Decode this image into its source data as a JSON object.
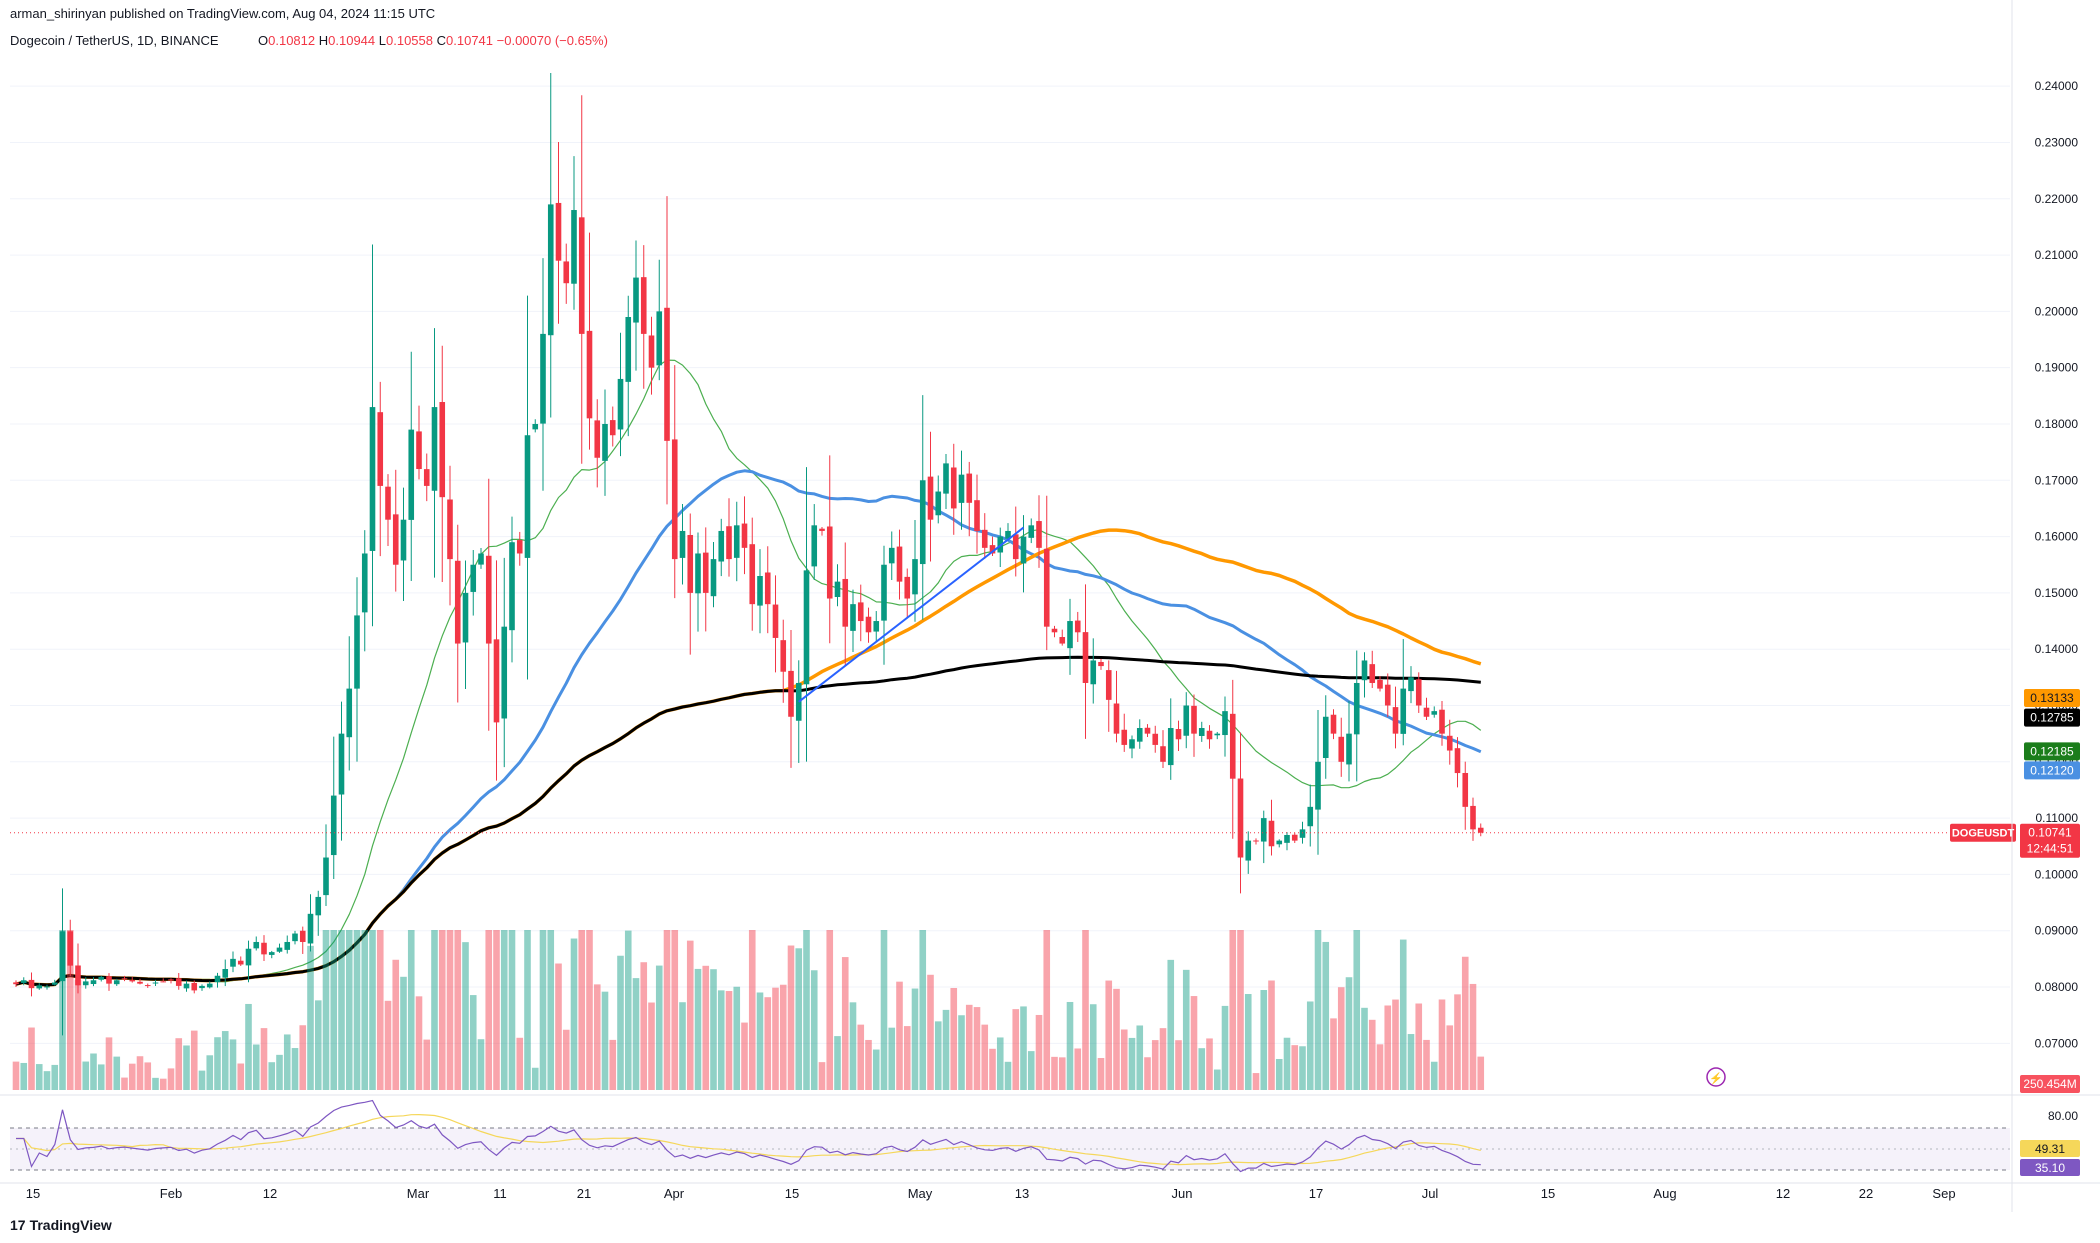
{
  "header": {
    "publisher": "arman_shirinyan published on TradingView.com, Aug 04, 2024 11:15 UTC",
    "symbol": "Dogecoin / TetherUS, 1D, BINANCE",
    "o_label": "O",
    "o": "0.10812",
    "h_label": "H",
    "h": "0.10944",
    "l_label": "L",
    "l": "0.10558",
    "c_label": "C",
    "c": "0.10741",
    "change": "−0.00070 (−0.65%)"
  },
  "branding": "TradingView",
  "colors": {
    "up": "#089981",
    "down": "#f23645",
    "ma20": "#4caf50",
    "ma50": "#4a90e2",
    "ma100": "#ff9800",
    "ma200": "#000000",
    "rsi": "#7e57c2",
    "rsi_ma": "#f5d75a"
  },
  "chart_data": {
    "type": "candlestick",
    "price_axis": {
      "ylim": [
        0.061,
        0.245
      ],
      "ticks": [
        "0.24000",
        "0.23000",
        "0.22000",
        "0.21000",
        "0.20000",
        "0.19000",
        "0.18000",
        "0.17000",
        "0.16000",
        "0.15000",
        "0.14000",
        "0.13000",
        "0.12000",
        "0.11000",
        "0.10000",
        "0.09000",
        "0.08000",
        "0.07000"
      ]
    },
    "time_axis": {
      "labels": [
        "15",
        "Feb",
        "12",
        "Mar",
        "11",
        "21",
        "Apr",
        "15",
        "May",
        "13",
        "Jun",
        "17",
        "Jul",
        "15",
        "Aug",
        "12",
        "22",
        "Sep"
      ]
    },
    "candles_anchor_closes": [
      0.0805,
      0.0812,
      0.0798,
      0.0803,
      0.0801,
      0.0808,
      0.0899,
      0.0838,
      0.0803,
      0.081,
      0.0812,
      0.0818,
      0.0806,
      0.0812,
      0.0814,
      0.081,
      0.0806,
      0.0802,
      0.0808,
      0.081,
      0.0812,
      0.0802,
      0.0806,
      0.0794,
      0.0802,
      0.0806,
      0.082,
      0.0832,
      0.085,
      0.084,
      0.0868,
      0.088,
      0.0858,
      0.0862,
      0.087,
      0.088,
      0.0895,
      0.088,
      0.093,
      0.096,
      0.103,
      0.114,
      0.125,
      0.133,
      0.146,
      0.157,
      0.183,
      0.169,
      0.163,
      0.155,
      0.163,
      0.179,
      0.172,
      0.169,
      0.183,
      0.167,
      0.156,
      0.141,
      0.15,
      0.155,
      0.157,
      0.141,
      0.127,
      0.144,
      0.159,
      0.157,
      0.178,
      0.18,
      0.196,
      0.219,
      0.209,
      0.205,
      0.218,
      0.196,
      0.181,
      0.174,
      0.18,
      0.178,
      0.188,
      0.199,
      0.206,
      0.196,
      0.19,
      0.2,
      0.177,
      0.156,
      0.161,
      0.15,
      0.157,
      0.15,
      0.156,
      0.161,
      0.156,
      0.162,
      0.158,
      0.148,
      0.153,
      0.148,
      0.142,
      0.136,
      0.128,
      0.134,
      0.154,
      0.162,
      0.161,
      0.149,
      0.152,
      0.144,
      0.148,
      0.145,
      0.143,
      0.145,
      0.155,
      0.158,
      0.152,
      0.149,
      0.156,
      0.17,
      0.163,
      0.168,
      0.173,
      0.165,
      0.171,
      0.166,
      0.161,
      0.158,
      0.157,
      0.16,
      0.161,
      0.156,
      0.16,
      0.162,
      0.158,
      0.144,
      0.143,
      0.141,
      0.145,
      0.143,
      0.134,
      0.138,
      0.137,
      0.131,
      0.125,
      0.123,
      0.124,
      0.126,
      0.125,
      0.123,
      0.12,
      0.126,
      0.124,
      0.13,
      0.125,
      0.126,
      0.124,
      0.125,
      0.129,
      0.117,
      0.103,
      0.106,
      0.106,
      0.11,
      0.105,
      0.106,
      0.107,
      0.106,
      0.108,
      0.112,
      0.12,
      0.128,
      0.125,
      0.12,
      0.125,
      0.134,
      0.138,
      0.134,
      0.133,
      0.13,
      0.125,
      0.133,
      0.135,
      0.13,
      0.128,
      0.129,
      0.125,
      0.122,
      0.118,
      0.112,
      0.108,
      0.1074
    ],
    "moving_averages": [
      {
        "current": "0.13133",
        "color": "#ff9800"
      },
      {
        "current": "0.12785",
        "color": "#000000"
      },
      {
        "current": "0.12185",
        "color": "#4caf50"
      },
      {
        "current": "0.12120",
        "color": "#4a90e2"
      }
    ],
    "last_price_label": {
      "symbol": "DOGEUSDT",
      "price": "0.10741",
      "countdown": "12:44:51"
    },
    "volume": {
      "last_label": "250.454M"
    },
    "rsi": {
      "ticks": [
        "80.00"
      ],
      "rsi_value": "35.10",
      "rsi_ma_value": "49.31"
    }
  }
}
